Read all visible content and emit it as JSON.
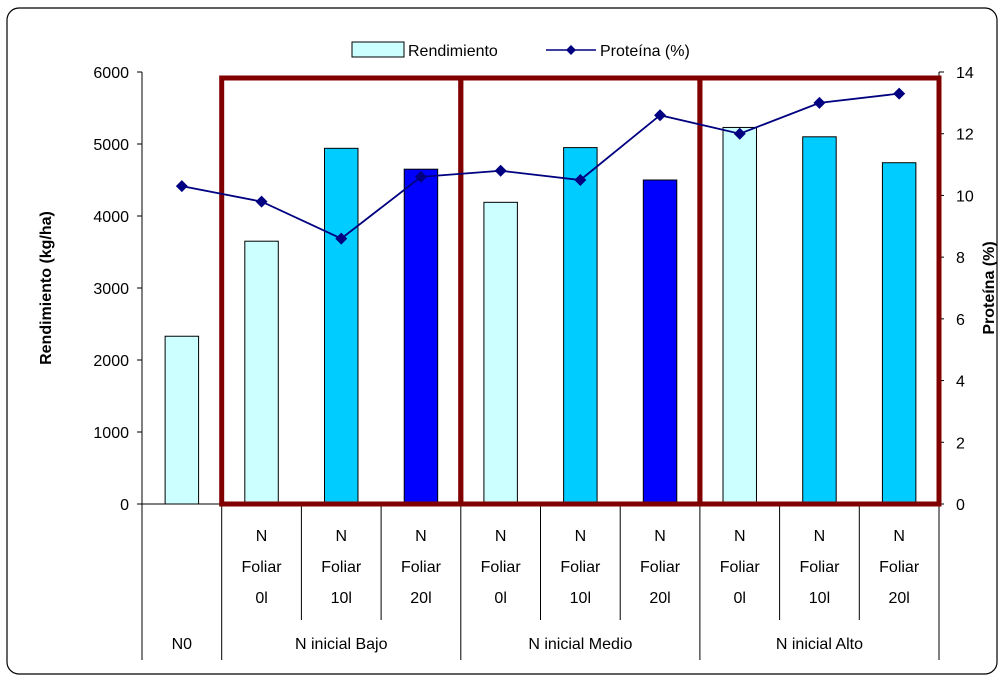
{
  "chart_data": {
    "type": "bar",
    "y_axis_left": {
      "label": "Rendimiento (kg/ha)",
      "range": [
        0,
        6000
      ],
      "ticks": [
        "0",
        "1000",
        "2000",
        "3000",
        "4000",
        "5000",
        "6000"
      ]
    },
    "y_axis_right": {
      "label": "Proteína (%)",
      "range": [
        0,
        14
      ],
      "ticks": [
        "0",
        "2",
        "4",
        "6",
        "8",
        "10",
        "12",
        "14"
      ]
    },
    "legend": {
      "position": "top",
      "entries": [
        "Rendimiento",
        "Proteína (%)"
      ]
    },
    "groups": [
      {
        "label": "N0",
        "categories": [
          ""
        ]
      },
      {
        "label": "N inicial Bajo",
        "categories": [
          "N Foliar 0l",
          "N Foliar 10l",
          "N Foliar 20l"
        ]
      },
      {
        "label": "N inicial Medio",
        "categories": [
          "N Foliar 0l",
          "N Foliar 10l",
          "N Foliar 20l"
        ]
      },
      {
        "label": "N inicial Alto",
        "categories": [
          "N Foliar 0l",
          "N Foliar 10l",
          "N Foliar 20l"
        ]
      }
    ],
    "category_label_lines": [
      [],
      [
        "N",
        "Foliar",
        "0l"
      ],
      [
        "N",
        "Foliar",
        "10l"
      ],
      [
        "N",
        "Foliar",
        "20l"
      ],
      [
        "N",
        "Foliar",
        "0l"
      ],
      [
        "N",
        "Foliar",
        "10l"
      ],
      [
        "N",
        "Foliar",
        "20l"
      ],
      [
        "N",
        "Foliar",
        "0l"
      ],
      [
        "N",
        "Foliar",
        "10l"
      ],
      [
        "N",
        "Foliar",
        "20l"
      ]
    ],
    "series": [
      {
        "name": "Rendimiento",
        "type": "bar",
        "axis": "left",
        "values": [
          2330,
          3650,
          4940,
          4650,
          4190,
          4950,
          4500,
          5230,
          5100,
          4740
        ]
      },
      {
        "name": "Proteína (%)",
        "type": "line",
        "axis": "right",
        "values": [
          10.3,
          9.8,
          8.6,
          10.6,
          10.8,
          10.5,
          12.6,
          12.0,
          13.0,
          13.3
        ]
      }
    ],
    "bar_colors": [
      "#ccffff",
      "#ccffff",
      "#00ccff",
      "#0000ff",
      "#ccffff",
      "#00ccff",
      "#0000ff",
      "#ccffff",
      "#00ccff",
      "#00ccff"
    ],
    "line_color": "#000080",
    "highlight_box_color": "#800000",
    "highlight_boxes": [
      "N inicial Bajo",
      "N inicial Medio",
      "N inicial Alto"
    ],
    "grid": false
  }
}
